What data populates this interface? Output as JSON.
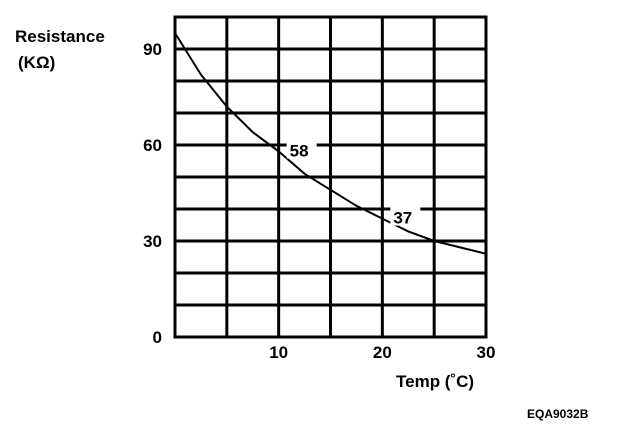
{
  "chart_data": {
    "type": "line",
    "ylabel_line1": "Resistance",
    "ylabel_line2": "(KΩ)",
    "xlabel": "Temp (˚C)",
    "xlim": [
      0,
      30
    ],
    "ylim": [
      0,
      100
    ],
    "x_ticks": [
      10,
      20,
      30
    ],
    "x_tick_labels": [
      "10",
      "20",
      "30"
    ],
    "y_ticks": [
      0,
      30,
      60,
      90
    ],
    "y_tick_labels": [
      "0",
      "30",
      "60",
      "90"
    ],
    "x_grid_values": [
      0,
      5,
      10,
      15,
      20,
      25,
      30
    ],
    "y_grid_values": [
      0,
      10,
      20,
      30,
      40,
      50,
      60,
      70,
      80,
      90,
      100
    ],
    "grid": true,
    "series": [
      {
        "x": [
          0,
          2.5,
          5,
          7.5,
          10,
          12.5,
          15,
          17.5,
          20,
          22.5,
          25,
          27.5,
          30
        ],
        "y": [
          95,
          82,
          72,
          64,
          58,
          51,
          46,
          41,
          37,
          33,
          30,
          28,
          26
        ]
      }
    ],
    "annotations": [
      {
        "x": 10,
        "y": 58,
        "text": "58"
      },
      {
        "x": 20,
        "y": 37,
        "text": "37"
      }
    ]
  },
  "figure_code": "EQA9032B"
}
